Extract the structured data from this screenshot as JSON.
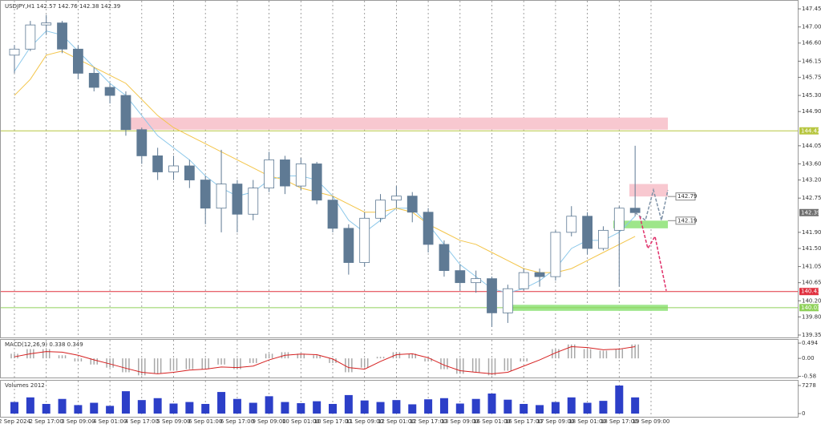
{
  "chart_data": {
    "type": "candlestick",
    "title": "USDJPY,H1 142.57 142.76 142.38 142.39",
    "categories": [
      "2 Sep 2024",
      null,
      "2 Sep 17:00",
      null,
      "3 Sep 09:00",
      null,
      "4 Sep 01:00",
      null,
      "4 Sep 17:00",
      null,
      "5 Sep 09:00",
      null,
      "6 Sep 01:00",
      null,
      "6 Sep 17:00",
      null,
      "9 Sep 09:00",
      null,
      "10 Sep 01:00",
      null,
      "10 Sep 17:00",
      null,
      "11 Sep 09:00",
      null,
      "12 Sep 01:00",
      null,
      "12 Sep 17:00",
      null,
      "13 Sep 09:00",
      null,
      "16 Sep 01:00",
      null,
      "16 Sep 17:00",
      null,
      "17 Sep 09:00",
      null,
      "18 Sep 01:00",
      null,
      "18 Sep 17:00",
      null,
      "19 Sep 09:00"
    ],
    "open": [
      146.3,
      146.45,
      147.05,
      147.1,
      146.45,
      145.85,
      145.5,
      145.3,
      144.45,
      143.8,
      143.4,
      143.55,
      143.2,
      142.5,
      143.1,
      142.35,
      143.0,
      143.7,
      143.05,
      143.6,
      142.7,
      142.0,
      141.15,
      142.25,
      142.7,
      142.8,
      142.4,
      141.6,
      140.95,
      140.65,
      140.75,
      139.9,
      140.5,
      140.9,
      140.8,
      141.9,
      142.3,
      141.5,
      141.95,
      142.5,
      null
    ],
    "high": [
      146.55,
      147.15,
      147.3,
      147.15,
      146.55,
      146.0,
      145.6,
      145.4,
      144.5,
      144.0,
      143.8,
      143.7,
      143.3,
      143.95,
      143.2,
      143.2,
      143.9,
      143.8,
      143.75,
      143.65,
      142.8,
      142.1,
      142.4,
      142.85,
      143.05,
      142.9,
      142.5,
      141.7,
      141.1,
      140.95,
      140.8,
      140.6,
      141.0,
      141.0,
      141.95,
      142.55,
      142.4,
      142.05,
      142.55,
      144.05,
      null
    ],
    "low": [
      145.85,
      146.4,
      146.8,
      146.35,
      145.7,
      145.4,
      145.1,
      144.3,
      143.6,
      143.2,
      143.2,
      143.0,
      142.1,
      141.9,
      141.9,
      142.2,
      142.9,
      142.85,
      142.95,
      142.6,
      141.9,
      140.85,
      141.05,
      142.15,
      142.5,
      142.15,
      141.4,
      140.8,
      140.45,
      140.4,
      139.55,
      139.65,
      140.45,
      140.55,
      140.7,
      141.8,
      141.35,
      141.45,
      140.55,
      142.3,
      null
    ],
    "close": [
      146.45,
      147.05,
      147.1,
      146.45,
      145.85,
      145.5,
      145.3,
      144.45,
      143.8,
      143.4,
      143.55,
      143.2,
      142.5,
      143.1,
      142.35,
      143.0,
      143.7,
      143.05,
      143.6,
      142.7,
      142.0,
      141.15,
      142.25,
      142.7,
      142.8,
      142.4,
      141.6,
      140.95,
      140.65,
      140.75,
      139.9,
      140.5,
      140.9,
      140.8,
      141.9,
      142.3,
      141.5,
      141.95,
      142.5,
      142.39,
      null
    ],
    "up_color": "#ffffff",
    "down_color": "#5f7a94",
    "wick_color": "#5f7a94",
    "ma": [
      {
        "color": "#8cc8ea",
        "values": [
          145.9,
          146.5,
          146.9,
          146.8,
          146.4,
          146.0,
          145.6,
          145.3,
          144.8,
          144.3,
          144.0,
          143.7,
          143.3,
          143.0,
          142.8,
          142.9,
          143.2,
          143.3,
          143.3,
          143.2,
          142.8,
          142.2,
          141.9,
          142.2,
          142.5,
          142.5,
          142.1,
          141.6,
          141.1,
          140.8,
          140.5,
          140.4,
          140.5,
          140.7,
          141.0,
          141.5,
          141.7,
          141.7,
          141.9,
          142.3,
          null
        ]
      },
      {
        "color": "#f3c54a",
        "values": [
          145.3,
          145.7,
          146.3,
          146.4,
          146.2,
          146.0,
          145.8,
          145.6,
          145.2,
          144.8,
          144.5,
          144.3,
          144.1,
          143.9,
          143.7,
          143.5,
          143.3,
          143.2,
          143.0,
          142.9,
          142.8,
          142.6,
          142.4,
          142.4,
          142.5,
          142.4,
          142.1,
          141.9,
          141.7,
          141.6,
          141.4,
          141.2,
          141.0,
          140.9,
          140.9,
          141.0,
          141.2,
          141.4,
          141.6,
          141.8,
          null
        ]
      }
    ],
    "ylim": [
      139.31,
      147.59
    ],
    "yticks": [
      147.45,
      {
        "value": 147,
        "label": "147.00"
      },
      {
        "value": 146.6,
        "label": "146.60"
      },
      146.15,
      145.75,
      {
        "value": 145.3,
        "label": "145.30"
      },
      {
        "value": 144.9,
        "label": "144.90"
      },
      144.05,
      {
        "value": 143.6,
        "label": "143.60"
      },
      {
        "value": 143.2,
        "label": "143.20"
      },
      142.75,
      {
        "value": 141.9,
        "label": "141.90"
      },
      {
        "value": 141.5,
        "label": "141.50"
      },
      141.05,
      140.65,
      {
        "value": 140.2,
        "label": "140.20"
      },
      {
        "value": 139.8,
        "label": "139.80"
      },
      139.35
    ],
    "grid": true,
    "last_price": {
      "value": 142.39,
      "color": "#6e6e6e"
    },
    "levels": [
      {
        "value": 144.42,
        "color": "#b7c640"
      },
      {
        "value": 140.43,
        "color": "#e0303f"
      },
      {
        "value": 140.03,
        "color": "#8fd15a"
      }
    ],
    "zones": [
      {
        "from": 144.45,
        "to": 144.75,
        "color": "#f8c8d0"
      },
      {
        "from": 139.95,
        "to": 140.1,
        "color": "#9ee68a"
      },
      {
        "from": 142.79,
        "to": 143.1,
        "color": "#f8c8d0"
      },
      {
        "from": 142.0,
        "to": 142.19,
        "color": "#9ee68a"
      }
    ],
    "targets": [
      142.79,
      142.19
    ],
    "projections": [
      {
        "color": "#7f93a8",
        "values": [
          142.39,
          142.2,
          142.95,
          142.2,
          142.95
        ]
      },
      {
        "color": "#e0306a",
        "values": [
          142.3,
          141.5,
          141.8,
          140.45
        ]
      }
    ],
    "macd": {
      "label": "MACD(12,26,9) 0.338 0.349",
      "hist": [
        0.15,
        0.3,
        0.3,
        0.1,
        -0.1,
        -0.2,
        -0.3,
        -0.45,
        -0.55,
        -0.5,
        -0.4,
        -0.35,
        -0.35,
        -0.2,
        -0.35,
        -0.15,
        0.15,
        0.2,
        0.15,
        0.1,
        -0.15,
        -0.45,
        -0.3,
        0.05,
        0.2,
        0.15,
        -0.1,
        -0.35,
        -0.5,
        -0.45,
        -0.55,
        -0.4,
        -0.1,
        0.0,
        0.3,
        0.45,
        0.3,
        0.25,
        0.3,
        0.45,
        null
      ],
      "signal": [
        0.05,
        0.15,
        0.22,
        0.2,
        0.1,
        -0.05,
        -0.18,
        -0.32,
        -0.45,
        -0.5,
        -0.45,
        -0.38,
        -0.35,
        -0.28,
        -0.3,
        -0.25,
        -0.05,
        0.1,
        0.14,
        0.12,
        -0.02,
        -0.3,
        -0.35,
        -0.1,
        0.12,
        0.15,
        0.02,
        -0.22,
        -0.4,
        -0.45,
        -0.5,
        -0.45,
        -0.25,
        -0.05,
        0.18,
        0.38,
        0.35,
        0.28,
        0.3,
        0.38,
        null
      ],
      "hist_color": "#a8a8a8",
      "signal_color": "#d62020",
      "ylim": [
        -0.62,
        0.6
      ],
      "yticks": [
        0.494,
        {
          "value": 0,
          "label": "0.00"
        },
        -0.58
      ]
    },
    "volume": {
      "label": "Volumes 2012",
      "color": "#2c3fc8",
      "values": [
        3000,
        4200,
        2500,
        3800,
        2200,
        2800,
        2000,
        5800,
        3500,
        4000,
        2600,
        3000,
        2500,
        5600,
        3800,
        2800,
        4500,
        3000,
        2700,
        3200,
        2500,
        4800,
        3400,
        3000,
        3500,
        2400,
        3700,
        4000,
        2600,
        3800,
        5200,
        3600,
        2500,
        2200,
        3000,
        4200,
        2800,
        3300,
        7278,
        4200,
        null
      ],
      "ylim": [
        0,
        7278
      ],
      "yticks": [
        7278,
        0
      ]
    }
  }
}
